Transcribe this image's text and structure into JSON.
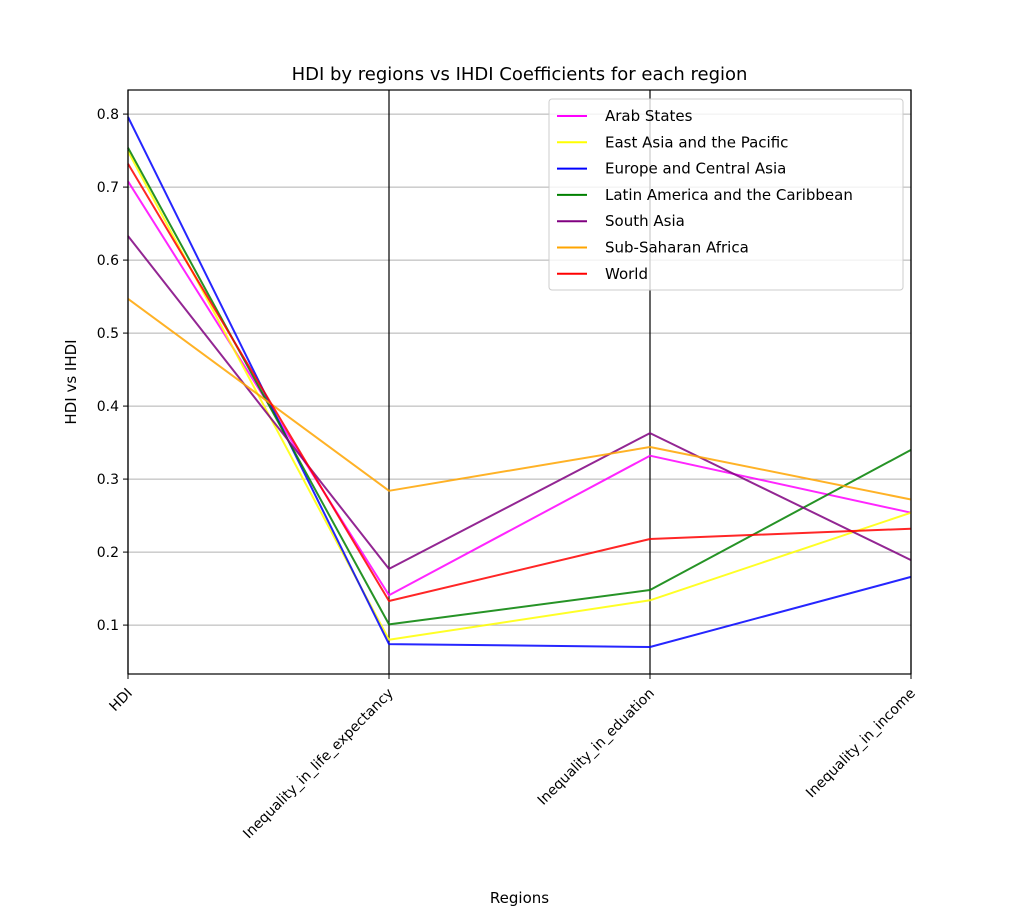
{
  "chart_data": {
    "type": "line",
    "title": "HDI by regions vs IHDI Coefficients for each region",
    "xlabel": "Regions",
    "ylabel": "HDI vs IHDI",
    "categories": [
      "HDI",
      "Inequality_in_life_expectancy",
      "Inequality_in_eduation",
      "Inequality_in_income"
    ],
    "ylim": [
      0.033,
      0.833
    ],
    "yticks": [
      "0.1",
      "0.2",
      "0.3",
      "0.4",
      "0.5",
      "0.6",
      "0.7",
      "0.8"
    ],
    "grid": "horizontal gridlines plus vertical lines at each category",
    "legend_position": "top-right",
    "series": [
      {
        "name": "Arab States",
        "color": "#ff00ff",
        "values": [
          0.708,
          0.141,
          0.332,
          0.254
        ]
      },
      {
        "name": "East Asia and the Pacific",
        "color": "#ffff00",
        "values": [
          0.749,
          0.08,
          0.134,
          0.254
        ]
      },
      {
        "name": "Europe and Central Asia",
        "color": "#0000ff",
        "values": [
          0.796,
          0.074,
          0.07,
          0.166
        ]
      },
      {
        "name": "Latin America and the Caribbean",
        "color": "#008000",
        "values": [
          0.754,
          0.101,
          0.148,
          0.34
        ]
      },
      {
        "name": "South Asia",
        "color": "#800080",
        "values": [
          0.633,
          0.177,
          0.363,
          0.189
        ]
      },
      {
        "name": "Sub-Saharan Africa",
        "color": "#ffa500",
        "values": [
          0.547,
          0.284,
          0.344,
          0.272
        ]
      },
      {
        "name": "World",
        "color": "#ff0000",
        "values": [
          0.732,
          0.133,
          0.218,
          0.232
        ]
      }
    ]
  }
}
